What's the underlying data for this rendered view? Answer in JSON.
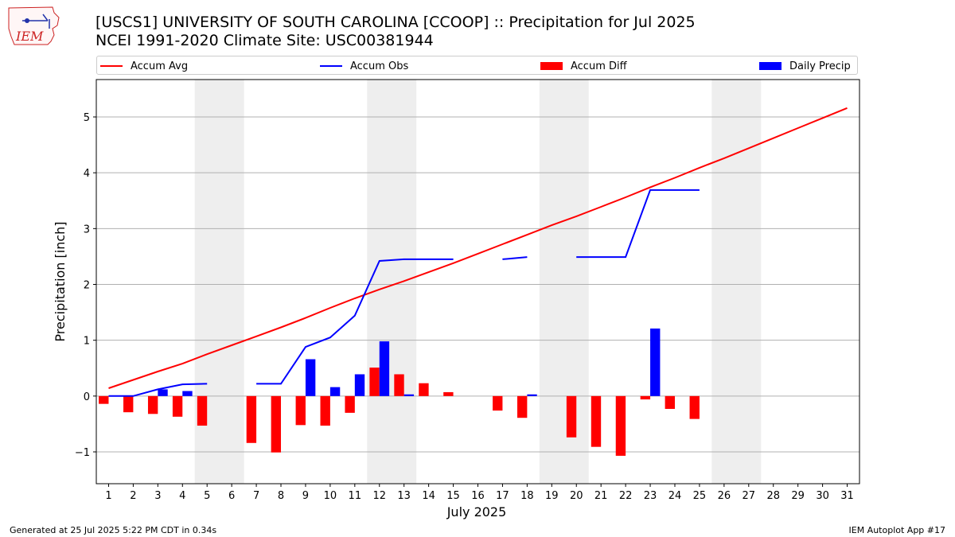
{
  "header": {
    "title_line1": "[USCS1] UNIVERSITY OF SOUTH CAROLINA [CCOOP] :: Precipitation for Jul 2025",
    "title_line2": "NCEI 1991-2020 Climate Site: USC00381944"
  },
  "logo": {
    "text": "IEM"
  },
  "footer": {
    "left": "Generated at 25 Jul 2025 5:22 PM CDT in 0.34s",
    "right": "IEM Autoplot App #17"
  },
  "legend": {
    "items": [
      {
        "label": "Accum Avg",
        "kind": "line",
        "color": "#ff0000"
      },
      {
        "label": "Accum Obs",
        "kind": "line",
        "color": "#0000ff"
      },
      {
        "label": "Accum Diff",
        "kind": "bar",
        "color": "#ff0000"
      },
      {
        "label": "Daily Precip",
        "kind": "bar",
        "color": "#0000ff"
      }
    ]
  },
  "chart_data": {
    "type": "bar",
    "xlabel": "July 2025",
    "ylabel": "Precipitation [inch]",
    "xlim": [
      0.5,
      31.5
    ],
    "ylim": [
      -1.57,
      5.67
    ],
    "yticks": [
      -1,
      0,
      1,
      2,
      3,
      4,
      5
    ],
    "ytick_labels": [
      "−1",
      "0",
      "1",
      "2",
      "3",
      "4",
      "5"
    ],
    "x": [
      1,
      2,
      3,
      4,
      5,
      6,
      7,
      8,
      9,
      10,
      11,
      12,
      13,
      14,
      15,
      16,
      17,
      18,
      19,
      20,
      21,
      22,
      23,
      24,
      25,
      26,
      27,
      28,
      29,
      30,
      31
    ],
    "grid": "horizontal",
    "weekend_shading": [
      [
        4.5,
        6.5
      ],
      [
        11.5,
        13.5
      ],
      [
        18.5,
        20.5
      ],
      [
        25.5,
        27.5
      ]
    ],
    "series": [
      {
        "name": "Accum Avg",
        "kind": "line",
        "color": "#ff0000",
        "values": [
          0.14,
          0.29,
          0.44,
          0.58,
          0.75,
          0.91,
          1.07,
          1.23,
          1.4,
          1.58,
          1.75,
          1.91,
          2.06,
          2.22,
          2.38,
          2.55,
          2.72,
          2.89,
          3.06,
          3.22,
          3.39,
          3.56,
          3.74,
          3.91,
          4.09,
          4.26,
          4.44,
          4.62,
          4.8,
          4.98,
          5.16
        ]
      },
      {
        "name": "Accum Obs",
        "kind": "line",
        "color": "#0000ff",
        "values": [
          0.0,
          0.0,
          0.12,
          0.21,
          0.22,
          null,
          0.22,
          0.22,
          0.88,
          1.05,
          1.44,
          2.42,
          2.45,
          2.45,
          2.45,
          null,
          2.45,
          2.49,
          null,
          2.49,
          2.49,
          2.49,
          3.69,
          3.69,
          3.69,
          null,
          null,
          null,
          null,
          null,
          null
        ]
      },
      {
        "name": "Accum Diff",
        "kind": "bar",
        "color": "#ff0000",
        "values": [
          -0.14,
          -0.29,
          -0.32,
          -0.37,
          -0.53,
          null,
          -0.84,
          -1.01,
          -0.52,
          -0.53,
          -0.3,
          0.51,
          0.39,
          0.23,
          0.07,
          null,
          -0.26,
          -0.39,
          null,
          -0.74,
          -0.91,
          -1.07,
          -0.06,
          -0.23,
          -0.41,
          null,
          null,
          null,
          null,
          null,
          null
        ]
      },
      {
        "name": "Daily Precip",
        "kind": "bar",
        "color": "#0000ff",
        "values": [
          0,
          0,
          0.12,
          0.09,
          0,
          null,
          0,
          0,
          0.66,
          0.16,
          0.39,
          0.98,
          0.03,
          0,
          0,
          null,
          0,
          0.03,
          null,
          0,
          0,
          0,
          1.21,
          0,
          0,
          null,
          null,
          null,
          null,
          null,
          null
        ]
      }
    ]
  }
}
